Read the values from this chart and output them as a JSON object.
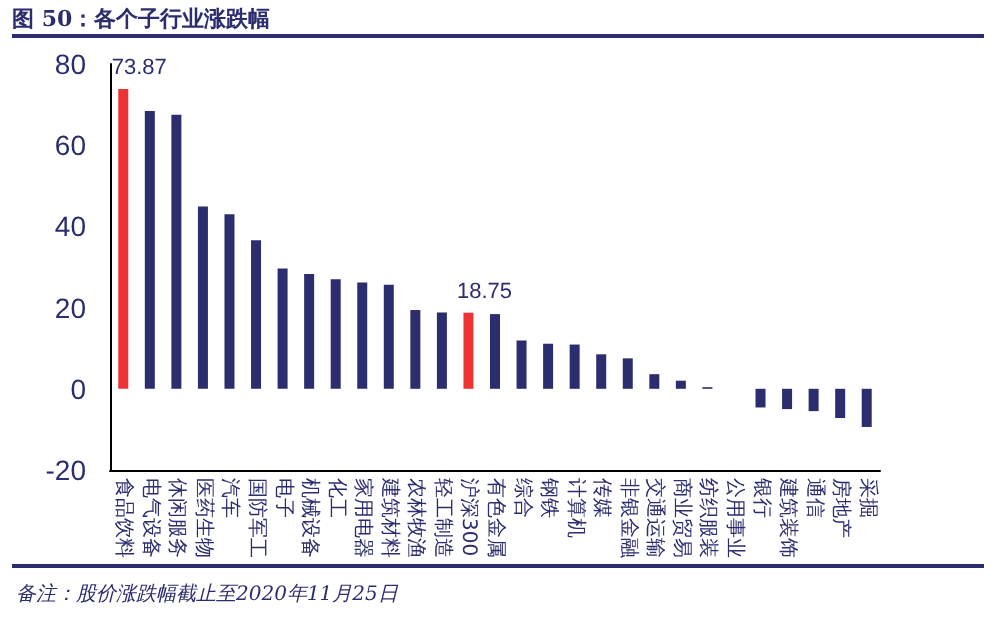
{
  "chart_data": {
    "type": "bar",
    "title": "图 50：各个子行业涨跌幅",
    "categories": [
      "食品饮料",
      "电气设备",
      "休闲服务",
      "医药生物",
      "汽车",
      "国防军工",
      "电子",
      "机械设备",
      "化工",
      "家用电器",
      "建筑材料",
      "农林牧渔",
      "轻工制造",
      "沪深300",
      "有色金属",
      "综合",
      "钢铁",
      "计算机",
      "传媒",
      "非银金融",
      "交通运输",
      "商业贸易",
      "纺织服装",
      "公用事业",
      "银行",
      "建筑装饰",
      "通信",
      "房地产",
      "采掘"
    ],
    "values": [
      73.87,
      68.4,
      67.5,
      44.9,
      43.0,
      36.6,
      29.6,
      28.3,
      27.0,
      26.2,
      25.6,
      19.4,
      18.8,
      18.75,
      18.4,
      11.9,
      11.1,
      10.9,
      8.5,
      7.5,
      3.6,
      2.0,
      0.4,
      0,
      -4.6,
      -5.0,
      -5.5,
      -7.2,
      -9.4
    ],
    "colors": [
      "#ee3333",
      "#2b2d6e",
      "#2b2d6e",
      "#2b2d6e",
      "#2b2d6e",
      "#2b2d6e",
      "#2b2d6e",
      "#2b2d6e",
      "#2b2d6e",
      "#2b2d6e",
      "#2b2d6e",
      "#2b2d6e",
      "#2b2d6e",
      "#ee3333",
      "#2b2d6e",
      "#2b2d6e",
      "#2b2d6e",
      "#2b2d6e",
      "#2b2d6e",
      "#2b2d6e",
      "#2b2d6e",
      "#2b2d6e",
      "#2b2d6e",
      "#2b2d6e",
      "#2b2d6e",
      "#2b2d6e",
      "#2b2d6e",
      "#2b2d6e",
      "#2b2d6e"
    ],
    "value_labels": [
      "73.87",
      null,
      null,
      null,
      null,
      null,
      null,
      null,
      null,
      null,
      null,
      null,
      null,
      "18.75",
      null,
      null,
      null,
      null,
      null,
      null,
      null,
      null,
      null,
      null,
      null,
      null,
      null,
      null,
      null
    ],
    "ylim": [
      -20,
      80
    ],
    "yticks": [
      -20,
      0,
      20,
      40,
      60,
      80
    ],
    "grid": false,
    "annotations": [
      "备注：股价涨跌幅截止至2020年11月25日"
    ]
  }
}
